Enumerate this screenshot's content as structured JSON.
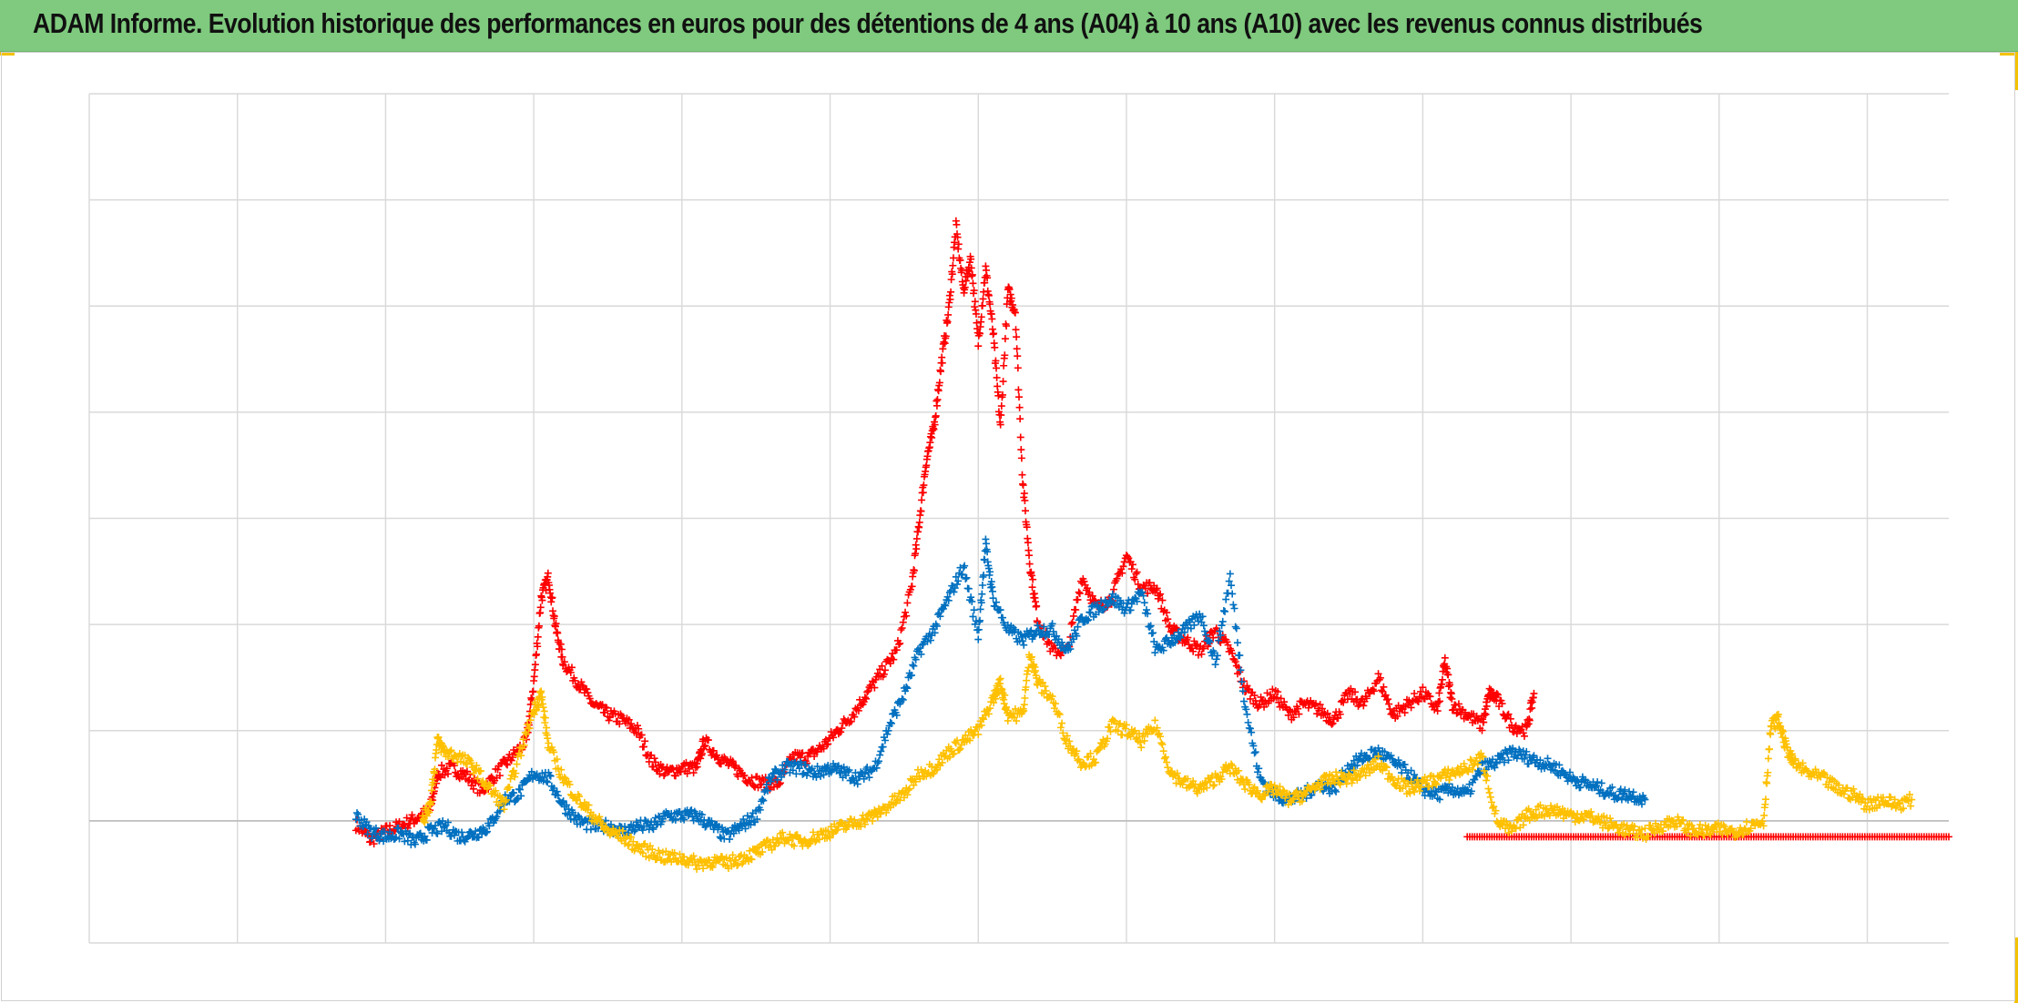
{
  "title": "ADAM Informe. Evolution historique des performances en euros pour des détentions de 4 ans (A04) à 10 ans (A10) avec les revenus connus distribués",
  "colors": {
    "title_bg": "#7fca7e",
    "grid": "#d9d9d9",
    "axis": "#bfbfbf",
    "corner_accent": "#f2c200"
  },
  "chart_data": {
    "type": "scatter",
    "marker": "plus",
    "grid": true,
    "xlim": [
      0,
      12.55
    ],
    "ylim": [
      -1.15,
      6.85
    ],
    "x_gridlines": [
      0,
      1,
      2,
      3,
      4,
      5,
      6,
      7,
      8,
      9,
      10,
      11,
      12
    ],
    "y_gridlines": [
      6.85,
      5.85,
      4.85,
      3.85,
      2.85,
      1.85,
      0.85,
      0
    ],
    "series": [
      {
        "color": "#ff0000",
        "points": [
          [
            1.8,
            -0.03
          ],
          [
            1.9,
            -0.18
          ],
          [
            2.0,
            -0.1
          ],
          [
            2.1,
            -0.05
          ],
          [
            2.2,
            0.02
          ],
          [
            2.3,
            0.1
          ],
          [
            2.35,
            0.45
          ],
          [
            2.45,
            0.5
          ],
          [
            2.55,
            0.42
          ],
          [
            2.65,
            0.28
          ],
          [
            2.75,
            0.45
          ],
          [
            2.85,
            0.6
          ],
          [
            2.95,
            0.75
          ],
          [
            3.0,
            1.3
          ],
          [
            3.05,
            2.1
          ],
          [
            3.1,
            2.3
          ],
          [
            3.15,
            1.8
          ],
          [
            3.2,
            1.5
          ],
          [
            3.3,
            1.3
          ],
          [
            3.4,
            1.1
          ],
          [
            3.5,
            1.0
          ],
          [
            3.6,
            0.95
          ],
          [
            3.7,
            0.85
          ],
          [
            3.8,
            0.55
          ],
          [
            3.9,
            0.45
          ],
          [
            4.0,
            0.5
          ],
          [
            4.1,
            0.5
          ],
          [
            4.15,
            0.75
          ],
          [
            4.25,
            0.6
          ],
          [
            4.35,
            0.5
          ],
          [
            4.45,
            0.4
          ],
          [
            4.55,
            0.35
          ],
          [
            4.65,
            0.35
          ],
          [
            4.75,
            0.6
          ],
          [
            4.85,
            0.6
          ],
          [
            4.95,
            0.7
          ],
          [
            5.05,
            0.85
          ],
          [
            5.15,
            1.0
          ],
          [
            5.25,
            1.2
          ],
          [
            5.35,
            1.4
          ],
          [
            5.45,
            1.6
          ],
          [
            5.55,
            2.2
          ],
          [
            5.6,
            2.8
          ],
          [
            5.65,
            3.4
          ],
          [
            5.7,
            3.7
          ],
          [
            5.75,
            4.3
          ],
          [
            5.8,
            4.8
          ],
          [
            5.85,
            5.6
          ],
          [
            5.9,
            5.0
          ],
          [
            5.95,
            5.3
          ],
          [
            6.0,
            4.5
          ],
          [
            6.05,
            5.2
          ],
          [
            6.1,
            4.6
          ],
          [
            6.15,
            3.7
          ],
          [
            6.2,
            5.0
          ],
          [
            6.25,
            4.8
          ],
          [
            6.3,
            3.2
          ],
          [
            6.35,
            2.4
          ],
          [
            6.4,
            1.9
          ],
          [
            6.5,
            1.6
          ],
          [
            6.6,
            1.6
          ],
          [
            6.7,
            2.3
          ],
          [
            6.8,
            2.0
          ],
          [
            6.9,
            2.1
          ],
          [
            7.0,
            2.5
          ],
          [
            7.1,
            2.2
          ],
          [
            7.2,
            2.2
          ],
          [
            7.3,
            1.8
          ],
          [
            7.4,
            1.7
          ],
          [
            7.5,
            1.6
          ],
          [
            7.6,
            1.8
          ],
          [
            7.7,
            1.6
          ],
          [
            7.8,
            1.25
          ],
          [
            7.9,
            1.1
          ],
          [
            8.0,
            1.2
          ],
          [
            8.1,
            1.0
          ],
          [
            8.2,
            1.1
          ],
          [
            8.3,
            1.05
          ],
          [
            8.4,
            0.95
          ],
          [
            8.5,
            1.2
          ],
          [
            8.6,
            1.1
          ],
          [
            8.7,
            1.35
          ],
          [
            8.8,
            1.0
          ],
          [
            8.9,
            1.1
          ],
          [
            9.0,
            1.2
          ],
          [
            9.1,
            1.05
          ],
          [
            9.15,
            1.5
          ],
          [
            9.2,
            1.1
          ],
          [
            9.3,
            1.0
          ],
          [
            9.4,
            0.9
          ],
          [
            9.45,
            1.2
          ],
          [
            9.5,
            1.15
          ],
          [
            9.6,
            0.9
          ],
          [
            9.7,
            0.85
          ],
          [
            9.75,
            1.2
          ]
        ],
        "flat_line": {
          "x_start": 9.3,
          "x_end": 12.55,
          "y": -0.15
        }
      },
      {
        "color": "#0070c0",
        "points": [
          [
            1.8,
            0.05
          ],
          [
            1.9,
            -0.1
          ],
          [
            2.0,
            -0.15
          ],
          [
            2.1,
            -0.12
          ],
          [
            2.2,
            -0.2
          ],
          [
            2.3,
            -0.1
          ],
          [
            2.4,
            -0.05
          ],
          [
            2.5,
            -0.15
          ],
          [
            2.6,
            -0.12
          ],
          [
            2.7,
            -0.05
          ],
          [
            2.8,
            0.2
          ],
          [
            2.9,
            0.25
          ],
          [
            3.0,
            0.45
          ],
          [
            3.1,
            0.4
          ],
          [
            3.2,
            0.15
          ],
          [
            3.3,
            0.0
          ],
          [
            3.4,
            -0.05
          ],
          [
            3.5,
            -0.05
          ],
          [
            3.6,
            -0.1
          ],
          [
            3.7,
            -0.05
          ],
          [
            3.8,
            -0.05
          ],
          [
            3.9,
            0.05
          ],
          [
            4.0,
            0.05
          ],
          [
            4.1,
            0.05
          ],
          [
            4.2,
            -0.05
          ],
          [
            4.3,
            -0.15
          ],
          [
            4.4,
            -0.05
          ],
          [
            4.5,
            0.05
          ],
          [
            4.6,
            0.4
          ],
          [
            4.7,
            0.5
          ],
          [
            4.8,
            0.5
          ],
          [
            4.9,
            0.45
          ],
          [
            5.0,
            0.5
          ],
          [
            5.1,
            0.45
          ],
          [
            5.2,
            0.4
          ],
          [
            5.3,
            0.5
          ],
          [
            5.4,
            0.9
          ],
          [
            5.5,
            1.2
          ],
          [
            5.6,
            1.6
          ],
          [
            5.7,
            1.8
          ],
          [
            5.8,
            2.1
          ],
          [
            5.9,
            2.4
          ],
          [
            6.0,
            1.75
          ],
          [
            6.05,
            2.6
          ],
          [
            6.1,
            2.1
          ],
          [
            6.2,
            1.8
          ],
          [
            6.3,
            1.7
          ],
          [
            6.4,
            1.8
          ],
          [
            6.5,
            1.8
          ],
          [
            6.6,
            1.6
          ],
          [
            6.7,
            1.9
          ],
          [
            6.8,
            2.0
          ],
          [
            6.9,
            2.1
          ],
          [
            7.0,
            2.0
          ],
          [
            7.1,
            2.15
          ],
          [
            7.2,
            1.6
          ],
          [
            7.3,
            1.7
          ],
          [
            7.4,
            1.8
          ],
          [
            7.5,
            1.95
          ],
          [
            7.6,
            1.5
          ],
          [
            7.7,
            2.3
          ],
          [
            7.8,
            1.1
          ],
          [
            7.9,
            0.4
          ],
          [
            8.0,
            0.25
          ],
          [
            8.1,
            0.2
          ],
          [
            8.2,
            0.25
          ],
          [
            8.3,
            0.35
          ],
          [
            8.4,
            0.3
          ],
          [
            8.5,
            0.5
          ],
          [
            8.6,
            0.6
          ],
          [
            8.7,
            0.65
          ],
          [
            8.8,
            0.55
          ],
          [
            8.9,
            0.45
          ],
          [
            9.0,
            0.3
          ],
          [
            9.1,
            0.25
          ],
          [
            9.2,
            0.3
          ],
          [
            9.3,
            0.25
          ],
          [
            9.4,
            0.5
          ],
          [
            9.5,
            0.55
          ],
          [
            9.6,
            0.65
          ],
          [
            9.7,
            0.6
          ],
          [
            9.8,
            0.55
          ],
          [
            9.9,
            0.5
          ],
          [
            10.0,
            0.4
          ],
          [
            10.1,
            0.35
          ],
          [
            10.2,
            0.3
          ],
          [
            10.3,
            0.25
          ],
          [
            10.4,
            0.25
          ],
          [
            10.5,
            0.2
          ]
        ]
      },
      {
        "color": "#ffc000",
        "points": [
          [
            2.25,
            0.0
          ],
          [
            2.3,
            0.15
          ],
          [
            2.35,
            0.75
          ],
          [
            2.4,
            0.65
          ],
          [
            2.5,
            0.6
          ],
          [
            2.6,
            0.5
          ],
          [
            2.7,
            0.3
          ],
          [
            2.8,
            0.15
          ],
          [
            2.9,
            0.6
          ],
          [
            3.0,
            1.05
          ],
          [
            3.05,
            1.2
          ],
          [
            3.1,
            0.7
          ],
          [
            3.2,
            0.4
          ],
          [
            3.3,
            0.2
          ],
          [
            3.4,
            0.05
          ],
          [
            3.5,
            -0.1
          ],
          [
            3.6,
            -0.15
          ],
          [
            3.7,
            -0.25
          ],
          [
            3.8,
            -0.3
          ],
          [
            3.9,
            -0.35
          ],
          [
            4.0,
            -0.35
          ],
          [
            4.1,
            -0.4
          ],
          [
            4.2,
            -0.38
          ],
          [
            4.3,
            -0.4
          ],
          [
            4.4,
            -0.35
          ],
          [
            4.5,
            -0.3
          ],
          [
            4.6,
            -0.22
          ],
          [
            4.7,
            -0.15
          ],
          [
            4.8,
            -0.2
          ],
          [
            4.9,
            -0.15
          ],
          [
            5.0,
            -0.1
          ],
          [
            5.1,
            -0.05
          ],
          [
            5.2,
            0.0
          ],
          [
            5.3,
            0.05
          ],
          [
            5.4,
            0.15
          ],
          [
            5.5,
            0.25
          ],
          [
            5.6,
            0.45
          ],
          [
            5.7,
            0.5
          ],
          [
            5.8,
            0.65
          ],
          [
            5.9,
            0.75
          ],
          [
            6.0,
            0.85
          ],
          [
            6.1,
            1.15
          ],
          [
            6.15,
            1.3
          ],
          [
            6.2,
            1.0
          ],
          [
            6.3,
            1.0
          ],
          [
            6.35,
            1.6
          ],
          [
            6.4,
            1.3
          ],
          [
            6.5,
            1.15
          ],
          [
            6.6,
            0.75
          ],
          [
            6.7,
            0.55
          ],
          [
            6.8,
            0.6
          ],
          [
            6.9,
            0.9
          ],
          [
            7.0,
            0.85
          ],
          [
            7.1,
            0.75
          ],
          [
            7.2,
            0.9
          ],
          [
            7.3,
            0.45
          ],
          [
            7.4,
            0.35
          ],
          [
            7.5,
            0.3
          ],
          [
            7.6,
            0.4
          ],
          [
            7.7,
            0.5
          ],
          [
            7.8,
            0.35
          ],
          [
            7.9,
            0.25
          ],
          [
            8.0,
            0.3
          ],
          [
            8.1,
            0.2
          ],
          [
            8.2,
            0.25
          ],
          [
            8.3,
            0.35
          ],
          [
            8.4,
            0.4
          ],
          [
            8.5,
            0.4
          ],
          [
            8.6,
            0.45
          ],
          [
            8.7,
            0.55
          ],
          [
            8.8,
            0.4
          ],
          [
            8.9,
            0.3
          ],
          [
            9.0,
            0.35
          ],
          [
            9.1,
            0.4
          ],
          [
            9.2,
            0.45
          ],
          [
            9.3,
            0.5
          ],
          [
            9.4,
            0.6
          ],
          [
            9.5,
            0.0
          ],
          [
            9.6,
            -0.1
          ],
          [
            9.7,
            0.05
          ],
          [
            9.8,
            0.1
          ],
          [
            9.9,
            0.1
          ],
          [
            10.0,
            0.05
          ],
          [
            10.1,
            0.05
          ],
          [
            10.2,
            0.0
          ],
          [
            10.3,
            -0.05
          ],
          [
            10.4,
            -0.1
          ],
          [
            10.5,
            -0.12
          ],
          [
            10.6,
            -0.05
          ],
          [
            10.7,
            0.0
          ],
          [
            10.8,
            -0.08
          ],
          [
            10.9,
            -0.1
          ],
          [
            11.0,
            -0.08
          ],
          [
            11.1,
            -0.1
          ],
          [
            11.2,
            -0.05
          ],
          [
            11.3,
            0.0
          ],
          [
            11.35,
            0.9
          ],
          [
            11.4,
            0.95
          ],
          [
            11.45,
            0.7
          ],
          [
            11.5,
            0.55
          ],
          [
            11.6,
            0.45
          ],
          [
            11.7,
            0.4
          ],
          [
            11.8,
            0.3
          ],
          [
            11.9,
            0.25
          ],
          [
            12.0,
            0.15
          ],
          [
            12.1,
            0.2
          ],
          [
            12.2,
            0.15
          ],
          [
            12.3,
            0.2
          ]
        ]
      }
    ]
  }
}
